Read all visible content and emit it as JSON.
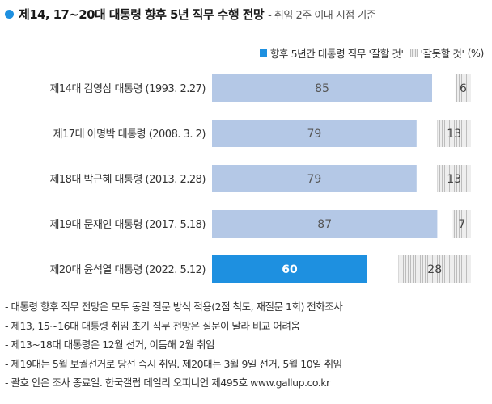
{
  "title": {
    "main": "제14, 17~20대 대통령 향후 5년 직무 수행 전망",
    "sub": "- 취임 2주 이내 시점 기준"
  },
  "legend": {
    "positive": "향후 5년간 대통령 직무 '잘할 것'",
    "negative": "'잘못할 것'",
    "unit": "(%)"
  },
  "colors": {
    "highlight": "#1e90e0",
    "positive": "#b4c8e6",
    "negative_stripe": "#bdbdbd",
    "negative_bg": "#eeeeee"
  },
  "chart_data": {
    "type": "bar",
    "orientation": "horizontal",
    "stacked": true,
    "categories": [
      "제14대 김영삼 대통령 (1993. 2.27)",
      "제17대 이명박 대통령 (2008. 3. 2)",
      "제18대 박근혜 대통령 (2013. 2.28)",
      "제19대 문재인 대통령 (2017. 5.18)",
      "제20대 윤석열 대통령 (2022. 5.12)"
    ],
    "series": [
      {
        "name": "향후 5년간 대통령 직무 '잘할 것'",
        "values": [
          85,
          79,
          79,
          87,
          60
        ]
      },
      {
        "name": "'잘못할 것'",
        "values": [
          6,
          13,
          13,
          7,
          28
        ]
      }
    ],
    "highlight_index": 4,
    "xlim": [
      0,
      100
    ],
    "unit": "%",
    "grid": false,
    "legend_position": "top-right"
  },
  "notes": [
    "- 대통령 향후 직무 전망은 모두 동일 질문 방식 적용(2점 척도, 재질문 1회) 전화조사",
    "- 제13, 15~16대 대통령 취임 초기 직무 전망은 질문이 달라 비교 어려움",
    "- 제13~18대 대통령은 12월 선거, 이듬해 2월 취임",
    "- 제19대는 5월 보궐선거로 당선 즉시 취임. 제20대는 3월 9일 선거, 5월 10일 취임",
    "- 괄호 안은 조사 종료일. 한국갤럽 데일리 오피니언 제495호 www.gallup.co.kr"
  ]
}
